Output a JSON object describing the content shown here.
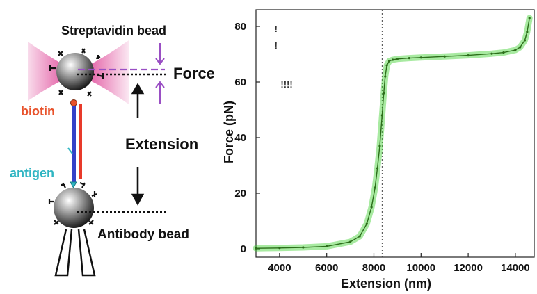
{
  "schematic": {
    "streptavidin_label": "Streptavidin bead",
    "force_label": "Force",
    "biotin_label": "biotin",
    "extension_label": "Extension",
    "antigen_label": "antigen",
    "antibody_label": "Antibody bead",
    "colors": {
      "trap": "#d6157c",
      "biotin": "#e8522b",
      "antigen": "#2fb5c2",
      "dna_blue": "#3442c8",
      "dna_red": "#e83a2a",
      "arrows": "#9a4fc4"
    }
  },
  "chart_data": {
    "type": "line",
    "title": "",
    "xlabel": "Extension (nm)",
    "ylabel": "Force (pN)",
    "xlim": [
      3000,
      14800
    ],
    "ylim": [
      -3,
      86
    ],
    "xticks": [
      4000,
      6000,
      8000,
      10000,
      12000,
      14000
    ],
    "yticks": [
      0,
      20,
      40,
      60,
      80
    ],
    "grid": false,
    "legend": null,
    "series": [
      {
        "color": "#3fd12f",
        "x": [
          3000,
          4000,
          5000,
          6000,
          7000,
          7400,
          7700,
          7900,
          8050,
          8150,
          8250,
          8350,
          8420,
          8480,
          8550,
          8650,
          8800,
          9000,
          9500,
          10000,
          11000,
          12000,
          13000,
          13500,
          14000,
          14200,
          14400,
          14500,
          14600
        ],
        "y": [
          0.2,
          0.3,
          0.5,
          0.9,
          2.5,
          4.5,
          9,
          15,
          22,
          29,
          37,
          48,
          56,
          62,
          66,
          67.5,
          68,
          68.3,
          68.6,
          68.8,
          69.2,
          69.6,
          70.2,
          70.6,
          71.5,
          72.5,
          75,
          78,
          83
        ]
      }
    ],
    "annotations": [
      {
        "text": "!",
        "x": 3850,
        "y": 78
      },
      {
        "text": "!",
        "x": 3850,
        "y": 72
      },
      {
        "text": "!!!!",
        "x": 4300,
        "y": 58
      }
    ],
    "vline_x": 8350
  }
}
